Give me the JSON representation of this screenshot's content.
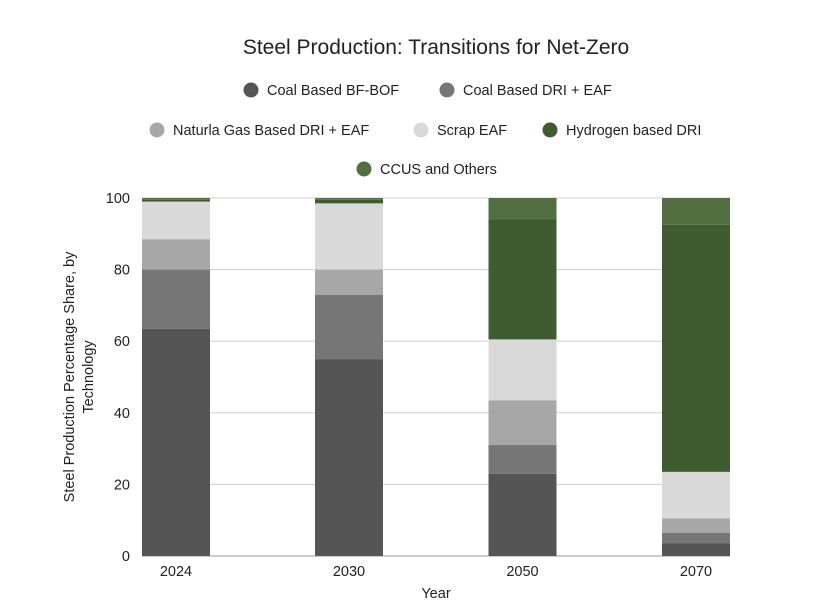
{
  "chart_data": {
    "type": "bar",
    "stacked": true,
    "title": "Steel Production: Transitions for Net-Zero",
    "xlabel": "Year",
    "ylabel": [
      "Steel Production Percentage Share, by",
      "Technology"
    ],
    "categories": [
      "2024",
      "2030",
      "2050",
      "2070"
    ],
    "ylim": [
      0,
      100
    ],
    "yticks": [
      0,
      20,
      40,
      60,
      80,
      100
    ],
    "grid": true,
    "legend_position": "top",
    "series": [
      {
        "name": "Coal Based BF-BOF",
        "color": "#555555",
        "values": [
          63.5,
          55,
          23,
          3.5
        ]
      },
      {
        "name": "Coal Based DRI + EAF",
        "color": "#767676",
        "values": [
          16.5,
          18,
          8,
          3
        ]
      },
      {
        "name": "Naturla Gas Based DRI + EAF",
        "color": "#a7a7a7",
        "values": [
          8.5,
          7,
          12.5,
          4
        ]
      },
      {
        "name": "Scrap EAF",
        "color": "#d9d9d9",
        "values": [
          10.5,
          18.5,
          17,
          13
        ]
      },
      {
        "name": "Hydrogen based DRI",
        "color": "#3e5c30",
        "values": [
          0.5,
          1,
          33.5,
          69
        ]
      },
      {
        "name": "CCUS and Others",
        "color": "#516f41",
        "values": [
          0.5,
          0.5,
          6,
          7.5
        ]
      }
    ]
  }
}
